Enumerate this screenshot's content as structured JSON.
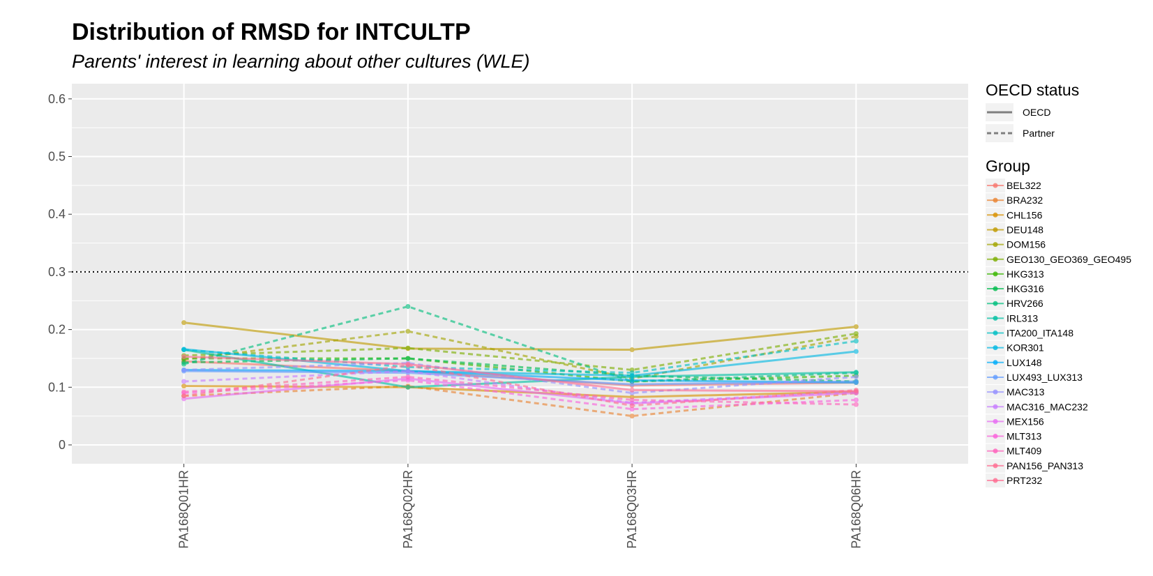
{
  "chart_data": {
    "type": "line",
    "title": "Distribution of RMSD for INTCULTP",
    "subtitle": "Parents' interest in learning about other cultures (WLE)",
    "xlabel": "",
    "ylabel": "",
    "categories": [
      "PA168Q01HR",
      "PA168Q02HR",
      "PA168Q03HR",
      "PA168Q06HR"
    ],
    "ylim": [
      -0.03,
      0.63
    ],
    "yticks": [
      0,
      0.1,
      0.2,
      0.3,
      0.4,
      0.5,
      0.6
    ],
    "ytick_labels": [
      "0",
      "0.1",
      "0.2",
      "0.3",
      "0.4",
      "0.5",
      "0.6"
    ],
    "reference_line": {
      "y": 0.3,
      "style": "dotted",
      "color": "#000000"
    },
    "grid": true,
    "panel_background": "#ebebeb",
    "legend_placement": "right",
    "linetype_legend": {
      "title": "OECD status",
      "items": [
        {
          "label": "OECD",
          "dash": "solid"
        },
        {
          "label": "Partner",
          "dash": "dashed"
        }
      ]
    },
    "group_legend_title": "Group",
    "series": [
      {
        "name": "BEL322",
        "color": "#F8766D",
        "status": "OECD",
        "values": [
          0.145,
          0.128,
          0.103,
          0.108
        ]
      },
      {
        "name": "BRA232",
        "color": "#EA8331",
        "status": "Partner",
        "values": [
          0.085,
          0.102,
          0.05,
          0.09
        ]
      },
      {
        "name": "CHL156",
        "color": "#D89000",
        "status": "OECD",
        "values": [
          0.102,
          0.1,
          0.083,
          0.092
        ]
      },
      {
        "name": "DEU148",
        "color": "#C09B00",
        "status": "OECD",
        "values": [
          0.212,
          0.167,
          0.165,
          0.205
        ]
      },
      {
        "name": "DOM156",
        "color": "#A3A500",
        "status": "Partner",
        "values": [
          0.148,
          0.197,
          0.115,
          0.188
        ]
      },
      {
        "name": "GEO130_GEO369_GEO495",
        "color": "#7CAE00",
        "status": "Partner",
        "values": [
          0.155,
          0.168,
          0.13,
          0.193
        ]
      },
      {
        "name": "HKG313",
        "color": "#39B600",
        "status": "Partner",
        "values": [
          0.15,
          0.15,
          0.11,
          0.12
        ]
      },
      {
        "name": "HKG316",
        "color": "#00BB4E",
        "status": "Partner",
        "values": [
          0.143,
          0.15,
          0.12,
          0.11
        ]
      },
      {
        "name": "HRV266",
        "color": "#00BF7D",
        "status": "Partner",
        "values": [
          0.14,
          0.24,
          0.11,
          0.125
        ]
      },
      {
        "name": "IRL313",
        "color": "#00C1A3",
        "status": "OECD",
        "values": [
          0.165,
          0.1,
          0.118,
          0.126
        ]
      },
      {
        "name": "ITA200_ITA148",
        "color": "#00BFC4",
        "status": "Partner",
        "values": [
          0.165,
          0.135,
          0.125,
          0.18
        ]
      },
      {
        "name": "KOR301",
        "color": "#00B9E3",
        "status": "OECD",
        "values": [
          0.166,
          0.128,
          0.12,
          0.162
        ]
      },
      {
        "name": "LUX148",
        "color": "#00ADFA",
        "status": "OECD",
        "values": [
          0.13,
          0.128,
          0.112,
          0.108
        ]
      },
      {
        "name": "LUX493_LUX313",
        "color": "#619CFF",
        "status": "OECD",
        "values": [
          0.128,
          0.125,
          0.105,
          0.11
        ]
      },
      {
        "name": "MAC313",
        "color": "#9590FF",
        "status": "Partner",
        "values": [
          0.13,
          0.142,
          0.09,
          0.118
        ]
      },
      {
        "name": "MAC316_MAC232",
        "color": "#C77CFF",
        "status": "Partner",
        "values": [
          0.11,
          0.128,
          0.073,
          0.092
        ]
      },
      {
        "name": "MEX156",
        "color": "#E76BF3",
        "status": "OECD",
        "values": [
          0.08,
          0.115,
          0.072,
          0.09
        ]
      },
      {
        "name": "MLT313",
        "color": "#FA62DB",
        "status": "Partner",
        "values": [
          0.09,
          0.112,
          0.062,
          0.078
        ]
      },
      {
        "name": "MLT409",
        "color": "#FF62BC",
        "status": "Partner",
        "values": [
          0.092,
          0.118,
          0.078,
          0.07
        ]
      },
      {
        "name": "PAN156_PAN313",
        "color": "#FF6C91",
        "status": "Partner",
        "values": [
          0.085,
          0.138,
          0.068,
          0.095
        ]
      },
      {
        "name": "PRT232",
        "color": "#FF6C91",
        "status": "OECD",
        "values": [
          0.153,
          0.14,
          0.095,
          0.093
        ]
      }
    ]
  }
}
